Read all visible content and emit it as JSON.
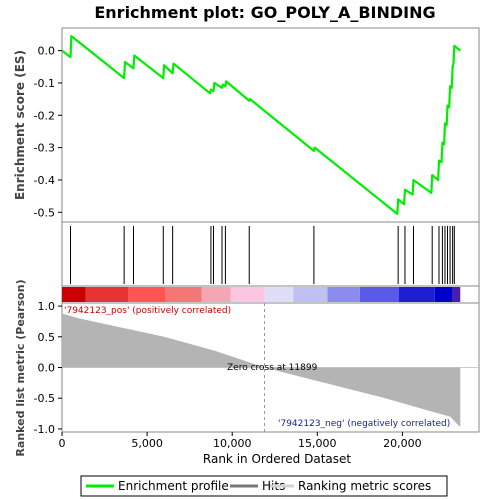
{
  "chart_data": {
    "type": "line",
    "title": "Enrichment plot: GO_POLY_A_BINDING",
    "es_panel": {
      "ylabel": "Enrichment score (ES)",
      "ylim": [
        -0.53,
        0.07
      ],
      "yticks": [
        "0.0",
        "-0.1",
        "-0.2",
        "-0.3",
        "-0.4",
        "-0.5"
      ],
      "ytick_values": [
        0.0,
        -0.1,
        -0.2,
        -0.3,
        -0.4,
        -0.5
      ],
      "series": [
        {
          "name": "Enrichment profile",
          "color": "#00ee00",
          "x": [
            0,
            500,
            550,
            3650,
            3700,
            4200,
            4250,
            5950,
            6000,
            6500,
            6550,
            8700,
            8750,
            8900,
            8950,
            9400,
            9450,
            9600,
            9650,
            11000,
            11050,
            14800,
            14850,
            19700,
            19750,
            20100,
            20150,
            20600,
            20650,
            21700,
            21750,
            22100,
            22150,
            22300,
            22350,
            22450,
            22500,
            22600,
            22650,
            22750,
            22800,
            22900,
            22950,
            23000,
            23050,
            23400
          ],
          "y": [
            0.0,
            -0.02,
            0.045,
            -0.085,
            -0.035,
            -0.055,
            -0.015,
            -0.085,
            -0.045,
            -0.07,
            -0.04,
            -0.132,
            -0.12,
            -0.125,
            -0.1,
            -0.115,
            -0.105,
            -0.11,
            -0.095,
            -0.155,
            -0.15,
            -0.31,
            -0.3,
            -0.505,
            -0.46,
            -0.475,
            -0.43,
            -0.445,
            -0.4,
            -0.44,
            -0.385,
            -0.4,
            -0.34,
            -0.345,
            -0.285,
            -0.29,
            -0.225,
            -0.23,
            -0.17,
            -0.175,
            -0.11,
            -0.115,
            -0.05,
            -0.04,
            0.015,
            0.0
          ]
        }
      ]
    },
    "hits": {
      "name": "Hits",
      "positions": [
        500,
        3650,
        4200,
        5950,
        6500,
        8750,
        8900,
        9400,
        9600,
        11000,
        14800,
        19750,
        20150,
        20650,
        21750,
        22150,
        22350,
        22500,
        22650,
        22800,
        22950,
        23050
      ]
    },
    "metric_panel": {
      "ylabel": "Ranked list metric (Pearson)",
      "ylim": [
        -1.05,
        1.05
      ],
      "yticks": [
        "1.0",
        "0.5",
        "0.0",
        "-0.5",
        "-1.0"
      ],
      "ytick_values": [
        1.0,
        0.5,
        0.0,
        -0.5,
        -1.0
      ],
      "name": "Ranking metric scores",
      "x": [
        0,
        1000,
        3000,
        6000,
        9000,
        11899,
        15000,
        19000,
        21500,
        22800,
        23400
      ],
      "y": [
        0.88,
        0.8,
        0.68,
        0.5,
        0.27,
        0.0,
        -0.22,
        -0.5,
        -0.7,
        -0.8,
        -0.97
      ]
    },
    "xlabel": "Rank in Ordered Dataset",
    "xlim": [
      0,
      24500
    ],
    "xticks": [
      "0",
      "5,000",
      "10,000",
      "15,000",
      "20,000"
    ],
    "xtick_values": [
      0,
      5000,
      10000,
      15000,
      20000
    ],
    "n_genes": 23400,
    "zero_cross": 11899,
    "zero_cross_label": "Zero cross at 11899",
    "pos_label": "'7942123_pos' (positively correlated)",
    "neg_label": "'7942123_neg' (negatively correlated)",
    "colorbar": [
      "#cc0000",
      "#e83333",
      "#ff5555",
      "#f47777",
      "#f4a6b4",
      "#fbc7e0",
      "#dedef8",
      "#c0c0f2",
      "#8c8cf0",
      "#5a5ae6",
      "#1e1ed2",
      "#0000cc",
      "#4a1eaa"
    ],
    "colorbar_bounds": [
      0,
      1400,
      3900,
      6100,
      8200,
      9900,
      11900,
      13600,
      15600,
      17500,
      19800,
      21900,
      22950,
      23400
    ],
    "legend": [
      {
        "label": "Enrichment profile",
        "color": "#00ee00"
      },
      {
        "label": "Hits",
        "color": "#777777"
      },
      {
        "label": "Ranking metric scores",
        "color": "#d3d3d3"
      }
    ]
  }
}
